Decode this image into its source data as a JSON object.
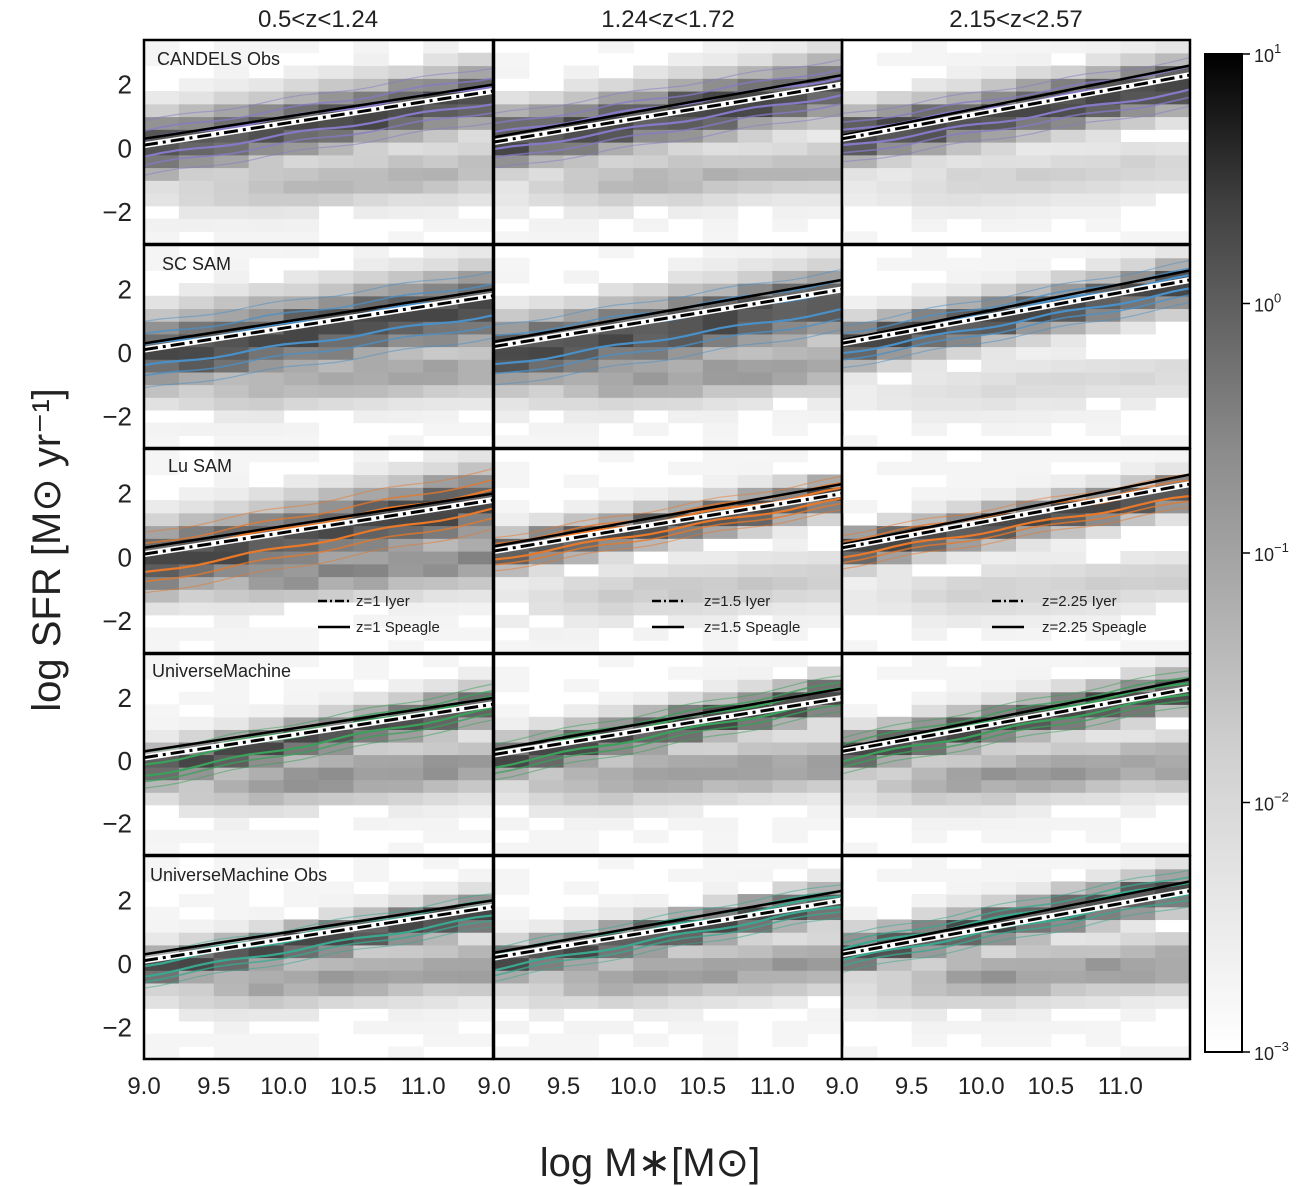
{
  "figure": {
    "xlabel": "log M∗[M⊙]",
    "ylabel": "log SFR [M⊙ yr⁻¹]"
  },
  "columns": [
    "0.5<z<1.24",
    "1.24<z<1.72",
    "2.15<z<2.57"
  ],
  "rows": [
    {
      "label": "CANDELS Obs",
      "contour_color": "#8878c8"
    },
    {
      "label": "SC SAM",
      "contour_color": "#4a90c8"
    },
    {
      "label": "Lu SAM",
      "contour_color": "#e8782a"
    },
    {
      "label": "UniverseMachine",
      "contour_color": "#3aa05a"
    },
    {
      "label": "UniverseMachine Obs",
      "contour_color": "#3aa890"
    }
  ],
  "xticks": [
    "9.0",
    "9.5",
    "10.0",
    "10.5",
    "11.0"
  ],
  "yticks": [
    "2",
    "0",
    "−2"
  ],
  "legend": [
    {
      "iyer": "z=1 Iyer",
      "speagle": "z=1 Speagle"
    },
    {
      "iyer": "z=1.5 Iyer",
      "speagle": "z=1.5 Speagle"
    },
    {
      "iyer": "z=2.25 Iyer",
      "speagle": "z=2.25 Speagle"
    }
  ],
  "colorbar": {
    "scale": "log",
    "range": [
      0.001,
      10
    ],
    "ticks": [
      {
        "base": "10",
        "exp": "1",
        "value": 10
      },
      {
        "base": "10",
        "exp": "0",
        "value": 1
      },
      {
        "base": "10",
        "exp": "−1",
        "value": 0.1
      },
      {
        "base": "10",
        "exp": "−2",
        "value": 0.01
      },
      {
        "base": "10",
        "exp": "−3",
        "value": 0.001
      }
    ],
    "cmap": "Greys"
  },
  "chart_data": {
    "type": "heatmap",
    "layout": "5 rows x 3 columns",
    "xlim": [
      9.0,
      11.5
    ],
    "ylim": [
      -3.0,
      3.4
    ],
    "x_grid_step": 0.25,
    "y_grid_step": 0.4,
    "main_sequence_lines": [
      {
        "name": "Speagle",
        "style": "solid",
        "by_column": [
          {
            "x": [
              9.0,
              11.5
            ],
            "y": [
              0.3,
              2.0
            ]
          },
          {
            "x": [
              9.0,
              11.5
            ],
            "y": [
              0.35,
              2.3
            ]
          },
          {
            "x": [
              9.0,
              11.5
            ],
            "y": [
              0.4,
              2.6
            ]
          }
        ]
      },
      {
        "name": "Iyer",
        "style": "dashdot",
        "by_column": [
          {
            "x": [
              9.0,
              11.5
            ],
            "y": [
              0.1,
              1.8
            ]
          },
          {
            "x": [
              9.0,
              11.5
            ],
            "y": [
              0.2,
              2.0
            ]
          },
          {
            "x": [
              9.0,
              11.5
            ],
            "y": [
              0.3,
              2.3
            ]
          }
        ]
      }
    ],
    "density_ridge": [
      [
        {
          "slope": 0.68,
          "y0": 0.0,
          "sf_width": 0.9,
          "q_amp": 0.35,
          "q_y": -1.4
        },
        {
          "slope": 0.65,
          "y0": -0.1,
          "sf_width": 1.1,
          "q_amp": 0.45,
          "q_y": -1.2
        },
        {
          "slope": 0.8,
          "y0": -0.2,
          "sf_width": 1.0,
          "q_amp": 0.6,
          "q_y": -0.8
        },
        {
          "slope": 0.85,
          "y0": -0.3,
          "sf_width": 0.6,
          "q_amp": 0.55,
          "q_y": -0.9
        },
        {
          "slope": 0.75,
          "y0": -0.2,
          "sf_width": 0.55,
          "q_amp": 0.5,
          "q_y": -0.8
        }
      ],
      [
        {
          "slope": 0.7,
          "y0": 0.2,
          "sf_width": 0.9,
          "q_amp": 0.35,
          "q_y": -1.3
        },
        {
          "slope": 0.7,
          "y0": -0.1,
          "sf_width": 1.0,
          "q_amp": 0.5,
          "q_y": -1.1
        },
        {
          "slope": 0.75,
          "y0": 0.1,
          "sf_width": 0.55,
          "q_amp": 0.25,
          "q_y": -1.4
        },
        {
          "slope": 0.85,
          "y0": 0.0,
          "sf_width": 0.6,
          "q_amp": 0.5,
          "q_y": -0.8
        },
        {
          "slope": 0.8,
          "y0": 0.0,
          "sf_width": 0.55,
          "q_amp": 0.5,
          "q_y": -0.7
        }
      ],
      [
        {
          "slope": 0.7,
          "y0": 0.3,
          "sf_width": 0.8,
          "q_amp": 0.2,
          "q_y": -1.3
        },
        {
          "slope": 0.8,
          "y0": 0.2,
          "sf_width": 0.7,
          "q_amp": 0.15,
          "q_y": -1.4
        },
        {
          "slope": 0.75,
          "y0": 0.2,
          "sf_width": 0.55,
          "q_amp": 0.2,
          "q_y": -1.4
        },
        {
          "slope": 0.85,
          "y0": 0.2,
          "sf_width": 0.6,
          "q_amp": 0.5,
          "q_y": -0.8
        },
        {
          "slope": 0.85,
          "y0": 0.3,
          "sf_width": 0.6,
          "q_amp": 0.5,
          "q_y": -0.7
        }
      ]
    ]
  }
}
